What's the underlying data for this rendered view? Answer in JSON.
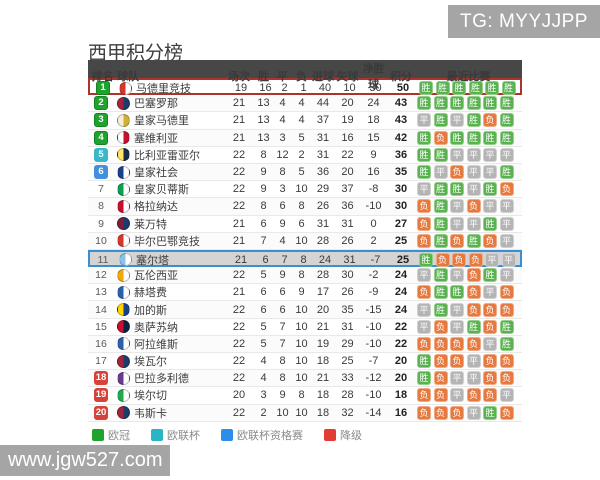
{
  "title": "西甲积分榜",
  "watermarks": {
    "top": "TG: MYYJJPP",
    "bottom": "www.jgw527.com"
  },
  "colors": {
    "header_bg": "#474747",
    "title_color": "#3d3d3d",
    "rank_green": "#1fa32c",
    "rank_cyan": "#38b8ca",
    "rank_blue": "#418fdd",
    "rank_red": "#d6413a",
    "win_bg": "#5ab150",
    "win_border": "#94cf8b",
    "draw_bg": "#b4b4b4",
    "draw_border": "#d2d2d2",
    "loss_bg": "#e6793f",
    "loss_border": "#f0ab85",
    "row_border": "#e9e9e9",
    "row1_border": "#ab352c",
    "highlight_border": "#3a8fd0",
    "highlight_bg": "#d4d4d4",
    "watermark_bg": "#a5a5a5"
  },
  "result_labels": {
    "W": "胜",
    "D": "平",
    "L": "负"
  },
  "table": {
    "headers": {
      "rank": "排名",
      "team": "球队",
      "played": "场次",
      "win": "胜",
      "draw": "平",
      "loss": "负",
      "goals_for": "进球",
      "goals_against": "失球",
      "goal_diff": "净胜球",
      "points": "积分",
      "recent": "最近比赛"
    },
    "rows": [
      {
        "rank": 1,
        "badge": "green",
        "team": "马德里竞技",
        "logo": [
          "#d6362c",
          "#ffffff"
        ],
        "played": 19,
        "win": 16,
        "draw": 2,
        "loss": 1,
        "gf": 40,
        "ga": 10,
        "gd": 30,
        "pts": 50,
        "recent": [
          "W",
          "W",
          "W",
          "W",
          "W",
          "W"
        ],
        "highlight": "red"
      },
      {
        "rank": 2,
        "badge": "green",
        "team": "巴塞罗那",
        "logo": [
          "#a3243a",
          "#1c3c6e"
        ],
        "played": 21,
        "win": 13,
        "draw": 4,
        "loss": 4,
        "gf": 44,
        "ga": 20,
        "gd": 24,
        "pts": 43,
        "recent": [
          "W",
          "W",
          "W",
          "W",
          "W",
          "W"
        ],
        "highlight": ""
      },
      {
        "rank": 3,
        "badge": "green",
        "team": "皇家马德里",
        "logo": [
          "#f3eeda",
          "#d4af37"
        ],
        "played": 21,
        "win": 13,
        "draw": 4,
        "loss": 4,
        "gf": 37,
        "ga": 19,
        "gd": 18,
        "pts": 43,
        "recent": [
          "D",
          "W",
          "D",
          "W",
          "L",
          "W"
        ],
        "highlight": ""
      },
      {
        "rank": 4,
        "badge": "green",
        "team": "塞维利亚",
        "logo": [
          "#ffffff",
          "#c8102e"
        ],
        "played": 21,
        "win": 13,
        "draw": 3,
        "loss": 5,
        "gf": 31,
        "ga": 16,
        "gd": 15,
        "pts": 42,
        "recent": [
          "W",
          "L",
          "W",
          "W",
          "W",
          "W"
        ],
        "highlight": ""
      },
      {
        "rank": 5,
        "badge": "cyan",
        "team": "比利亚雷亚尔",
        "logo": [
          "#ffe667",
          "#1a2a4a"
        ],
        "played": 22,
        "win": 8,
        "draw": 12,
        "loss": 2,
        "gf": 31,
        "ga": 22,
        "gd": 9,
        "pts": 36,
        "recent": [
          "W",
          "W",
          "D",
          "D",
          "D",
          "D"
        ],
        "highlight": ""
      },
      {
        "rank": 6,
        "badge": "blue",
        "team": "皇家社会",
        "logo": [
          "#1a3f8f",
          "#ffffff"
        ],
        "played": 22,
        "win": 9,
        "draw": 8,
        "loss": 5,
        "gf": 36,
        "ga": 20,
        "gd": 16,
        "pts": 35,
        "recent": [
          "W",
          "D",
          "L",
          "D",
          "D",
          "W"
        ],
        "highlight": ""
      },
      {
        "rank": 7,
        "badge": "none",
        "team": "皇家贝蒂斯",
        "logo": [
          "#0aa04f",
          "#ffffff"
        ],
        "played": 22,
        "win": 9,
        "draw": 3,
        "loss": 10,
        "gf": 29,
        "ga": 37,
        "gd": -8,
        "pts": 30,
        "recent": [
          "D",
          "W",
          "W",
          "D",
          "W",
          "L"
        ],
        "highlight": ""
      },
      {
        "rank": 8,
        "badge": "none",
        "team": "格拉纳达",
        "logo": [
          "#c8102e",
          "#ffffff"
        ],
        "played": 22,
        "win": 8,
        "draw": 6,
        "loss": 8,
        "gf": 26,
        "ga": 36,
        "gd": -10,
        "pts": 30,
        "recent": [
          "L",
          "W",
          "D",
          "L",
          "D",
          "D"
        ],
        "highlight": ""
      },
      {
        "rank": 9,
        "badge": "none",
        "team": "莱万特",
        "logo": [
          "#7a1f3d",
          "#1c3c6e"
        ],
        "played": 21,
        "win": 6,
        "draw": 9,
        "loss": 6,
        "gf": 31,
        "ga": 31,
        "gd": 0,
        "pts": 27,
        "recent": [
          "L",
          "W",
          "D",
          "D",
          "W",
          "D"
        ],
        "highlight": ""
      },
      {
        "rank": 10,
        "badge": "none",
        "team": "毕尔巴鄂竞技",
        "logo": [
          "#d6362c",
          "#ffffff"
        ],
        "played": 21,
        "win": 7,
        "draw": 4,
        "loss": 10,
        "gf": 28,
        "ga": 26,
        "gd": 2,
        "pts": 25,
        "recent": [
          "L",
          "W",
          "L",
          "W",
          "L",
          "D"
        ],
        "highlight": ""
      },
      {
        "rank": 11,
        "badge": "none",
        "team": "塞尔塔",
        "logo": [
          "#8ac3e6",
          "#ffffff"
        ],
        "played": 21,
        "win": 6,
        "draw": 7,
        "loss": 8,
        "gf": 24,
        "ga": 31,
        "gd": -7,
        "pts": 25,
        "recent": [
          "W",
          "L",
          "L",
          "L",
          "D",
          "D"
        ],
        "highlight": "blue"
      },
      {
        "rank": 12,
        "badge": "none",
        "team": "瓦伦西亚",
        "logo": [
          "#f7a800",
          "#ffffff"
        ],
        "played": 22,
        "win": 5,
        "draw": 9,
        "loss": 8,
        "gf": 28,
        "ga": 30,
        "gd": -2,
        "pts": 24,
        "recent": [
          "D",
          "W",
          "D",
          "L",
          "W",
          "D"
        ],
        "highlight": ""
      },
      {
        "rank": 13,
        "badge": "none",
        "team": "赫塔费",
        "logo": [
          "#2b5fad",
          "#ffffff"
        ],
        "played": 21,
        "win": 6,
        "draw": 6,
        "loss": 9,
        "gf": 17,
        "ga": 26,
        "gd": -9,
        "pts": 24,
        "recent": [
          "L",
          "W",
          "W",
          "L",
          "D",
          "L"
        ],
        "highlight": ""
      },
      {
        "rank": 14,
        "badge": "none",
        "team": "加的斯",
        "logo": [
          "#ffd700",
          "#1a3f8f"
        ],
        "played": 22,
        "win": 6,
        "draw": 6,
        "loss": 10,
        "gf": 20,
        "ga": 35,
        "gd": -15,
        "pts": 24,
        "recent": [
          "D",
          "W",
          "D",
          "L",
          "L",
          "L"
        ],
        "highlight": ""
      },
      {
        "rank": 15,
        "badge": "none",
        "team": "奥萨苏纳",
        "logo": [
          "#c8102e",
          "#0a2342"
        ],
        "played": 22,
        "win": 5,
        "draw": 7,
        "loss": 10,
        "gf": 21,
        "ga": 31,
        "gd": -10,
        "pts": 22,
        "recent": [
          "D",
          "L",
          "D",
          "W",
          "L",
          "W"
        ],
        "highlight": ""
      },
      {
        "rank": 16,
        "badge": "none",
        "team": "阿拉维斯",
        "logo": [
          "#2b5fad",
          "#ffffff"
        ],
        "played": 22,
        "win": 5,
        "draw": 7,
        "loss": 10,
        "gf": 19,
        "ga": 29,
        "gd": -10,
        "pts": 22,
        "recent": [
          "L",
          "L",
          "L",
          "L",
          "D",
          "W"
        ],
        "highlight": ""
      },
      {
        "rank": 17,
        "badge": "none",
        "team": "埃瓦尔",
        "logo": [
          "#a3243a",
          "#1c3c6e"
        ],
        "played": 22,
        "win": 4,
        "draw": 8,
        "loss": 10,
        "gf": 18,
        "ga": 25,
        "gd": -7,
        "pts": 20,
        "recent": [
          "W",
          "L",
          "L",
          "D",
          "L",
          "L"
        ],
        "highlight": ""
      },
      {
        "rank": 18,
        "badge": "red",
        "team": "巴拉多利德",
        "logo": [
          "#6a3a8e",
          "#ffffff"
        ],
        "played": 22,
        "win": 4,
        "draw": 8,
        "loss": 10,
        "gf": 21,
        "ga": 33,
        "gd": -12,
        "pts": 20,
        "recent": [
          "W",
          "L",
          "D",
          "D",
          "L",
          "L"
        ],
        "highlight": ""
      },
      {
        "rank": 19,
        "badge": "red",
        "team": "埃尔切",
        "logo": [
          "#1faa50",
          "#ffffff"
        ],
        "played": 20,
        "win": 3,
        "draw": 9,
        "loss": 8,
        "gf": 18,
        "ga": 28,
        "gd": -10,
        "pts": 18,
        "recent": [
          "L",
          "L",
          "D",
          "L",
          "L",
          "D"
        ],
        "highlight": ""
      },
      {
        "rank": 20,
        "badge": "red",
        "team": "韦斯卡",
        "logo": [
          "#a3243a",
          "#1c3c6e"
        ],
        "played": 22,
        "win": 2,
        "draw": 10,
        "loss": 10,
        "gf": 18,
        "ga": 32,
        "gd": -14,
        "pts": 16,
        "recent": [
          "L",
          "L",
          "L",
          "D",
          "W",
          "L"
        ],
        "highlight": ""
      }
    ]
  },
  "legend": [
    {
      "color": "#1fa32c",
      "label": "欧冠"
    },
    {
      "color": "#2ab5c6",
      "label": "欧联杯"
    },
    {
      "color": "#2e8de8",
      "label": "欧联杯资格赛"
    },
    {
      "color": "#e23c36",
      "label": "降级"
    }
  ]
}
